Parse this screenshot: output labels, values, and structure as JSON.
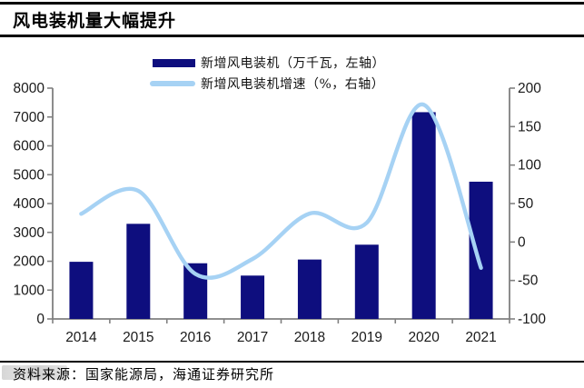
{
  "title": "风电装机量大幅提升",
  "legend": {
    "items": [
      {
        "label": "新增风电装机（万千瓦，左轴）",
        "swatch": "bar",
        "color": "#0e0e7e"
      },
      {
        "label": "新增风电装机增速（%，右轴）",
        "swatch": "line",
        "color": "#a6d2f4"
      }
    ]
  },
  "chart_data": {
    "type": "bar+line",
    "title": "风电装机量大幅提升",
    "categories": [
      "2014",
      "2015",
      "2016",
      "2017",
      "2018",
      "2019",
      "2020",
      "2021"
    ],
    "series": [
      {
        "name": "新增风电装机（万千瓦，左轴）",
        "type": "bar",
        "axis": "left",
        "color": "#0e0e7e",
        "values": [
          1981,
          3297,
          1930,
          1503,
          2059,
          2574,
          7167,
          4757
        ]
      },
      {
        "name": "新增风电装机增速（%，右轴）",
        "type": "line",
        "axis": "right",
        "color": "#a6d2f4",
        "values": [
          36.7,
          66.4,
          -41.5,
          -22.1,
          37.0,
          25.0,
          178.4,
          -33.6
        ]
      }
    ],
    "left_axis": {
      "min": 0,
      "max": 8000,
      "step": 1000,
      "ticks": [
        "0",
        "1000",
        "2000",
        "3000",
        "4000",
        "5000",
        "6000",
        "7000",
        "8000"
      ]
    },
    "right_axis": {
      "min": -100,
      "max": 200,
      "step": 50,
      "ticks": [
        "-100",
        "-50",
        "0",
        "50",
        "100",
        "150",
        "200"
      ]
    },
    "grid": false,
    "legend_position": "top",
    "axis_color": "#808080"
  },
  "footer": {
    "source_text": "资料来源：国家能源局，海通证券研究所"
  }
}
